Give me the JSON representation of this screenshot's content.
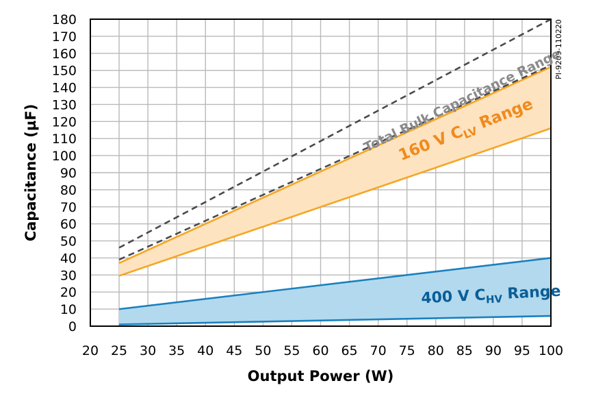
{
  "chart_data": {
    "type": "area",
    "xlabel": "Output Power (W)",
    "ylabel": "Capacitance (µF)",
    "xlim": [
      20,
      100
    ],
    "ylim": [
      0,
      180
    ],
    "xticks": [
      20,
      25,
      30,
      35,
      40,
      45,
      50,
      55,
      60,
      65,
      70,
      75,
      80,
      85,
      90,
      95,
      100
    ],
    "yticks": [
      0,
      10,
      20,
      30,
      40,
      50,
      60,
      70,
      80,
      90,
      100,
      110,
      120,
      130,
      140,
      150,
      160,
      170,
      180
    ],
    "grid": true,
    "chart_id": "PI-9209-110220",
    "bands": [
      {
        "name": "400 V C",
        "subscript": "HV",
        "suffix": " Range",
        "fill": "#b3d9ee",
        "line": "#1a80be",
        "label_color": "#0a5e97",
        "x": [
          25,
          100
        ],
        "lower": [
          1,
          6
        ],
        "upper": [
          10,
          40
        ]
      },
      {
        "name": "160 V C",
        "subscript": "LV",
        "suffix": " Range",
        "fill": "#fde3c0",
        "line": "#f5a623",
        "label_color": "#f08a1c",
        "x": [
          25,
          100
        ],
        "lower": [
          29.5,
          116
        ],
        "upper": [
          37,
          152
        ]
      }
    ],
    "dashed_lines": {
      "name": "Total Bulk Capacitance Range",
      "color": "#4a4a4a",
      "label_color": "#8a8a8a",
      "x": [
        25,
        100
      ],
      "lower": [
        39,
        153
      ],
      "upper": [
        46,
        180
      ]
    }
  }
}
